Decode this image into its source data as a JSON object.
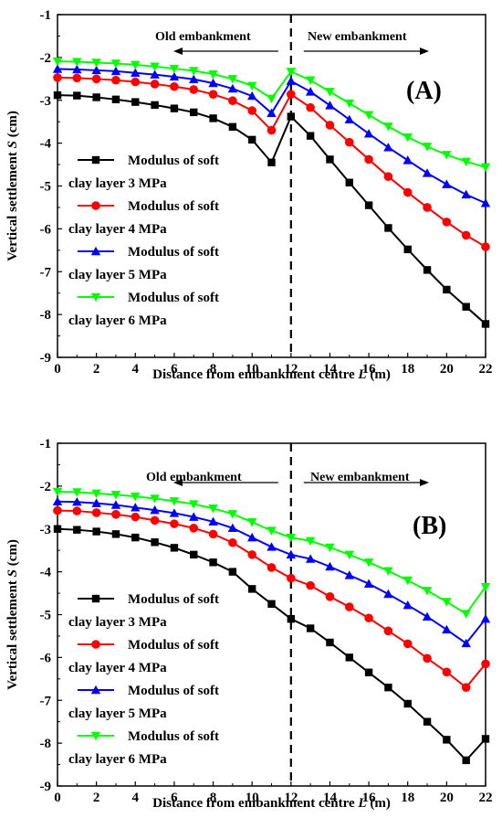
{
  "chart_data": [
    {
      "type": "line",
      "panel_label": "(A)",
      "xlabel_prefix": "Distance from embankment centre ",
      "xlabel_var": "L",
      "xlabel_unit": " (m)",
      "ylabel_prefix": "Vertical settlement  ",
      "ylabel_var": "S",
      "ylabel_unit": " (cm)",
      "xlim": [
        0,
        22
      ],
      "ylim": [
        -9,
        -1
      ],
      "xticks": [
        "0",
        "2",
        "4",
        "6",
        "8",
        "10",
        "12",
        "14",
        "16",
        "18",
        "20",
        "22"
      ],
      "yticks": [
        "-1",
        "-2",
        "-3",
        "-4",
        "-5",
        "-6",
        "-7",
        "-8",
        "-9"
      ],
      "divider_x": 12,
      "annotations": {
        "left": "Old embankment",
        "right": "New embankment"
      },
      "legend_position": "left",
      "x": [
        0,
        1,
        2,
        3,
        4,
        5,
        6,
        7,
        8,
        9,
        10,
        11,
        12,
        13,
        14,
        15,
        16,
        17,
        18,
        19,
        20,
        21,
        22
      ],
      "series": [
        {
          "name_line1": "Modulus of soft",
          "name_line2": "clay layer 3 MPa",
          "color": "#000000",
          "marker": "square",
          "values": [
            -2.88,
            -2.89,
            -2.93,
            -2.98,
            -3.04,
            -3.11,
            -3.19,
            -3.28,
            -3.42,
            -3.62,
            -3.92,
            -4.45,
            -3.38,
            -3.83,
            -4.38,
            -4.92,
            -5.45,
            -5.98,
            -6.48,
            -6.96,
            -7.42,
            -7.82,
            -8.22
          ]
        },
        {
          "name_line1": "Modulus of soft",
          "name_line2": "clay layer 4 MPa",
          "color": "#ff0000",
          "marker": "circle",
          "values": [
            -2.47,
            -2.48,
            -2.5,
            -2.53,
            -2.57,
            -2.62,
            -2.68,
            -2.75,
            -2.86,
            -3.01,
            -3.24,
            -3.7,
            -2.86,
            -3.17,
            -3.58,
            -3.98,
            -4.38,
            -4.78,
            -5.15,
            -5.5,
            -5.84,
            -6.15,
            -6.42
          ]
        },
        {
          "name_line1": "Modulus of soft",
          "name_line2": "clay layer 5 MPa",
          "color": "#0000ff",
          "marker": "triangle-up",
          "values": [
            -2.27,
            -2.28,
            -2.3,
            -2.32,
            -2.36,
            -2.4,
            -2.45,
            -2.51,
            -2.6,
            -2.73,
            -2.9,
            -3.3,
            -2.55,
            -2.8,
            -3.12,
            -3.45,
            -3.78,
            -4.1,
            -4.4,
            -4.7,
            -4.96,
            -5.2,
            -5.4
          ]
        },
        {
          "name_line1": "Modulus of soft",
          "name_line2": "clay layer 6 MPa",
          "color": "#00ff00",
          "marker": "triangle-down",
          "values": [
            -2.09,
            -2.1,
            -2.12,
            -2.14,
            -2.17,
            -2.21,
            -2.26,
            -2.31,
            -2.39,
            -2.5,
            -2.66,
            -2.96,
            -2.33,
            -2.53,
            -2.8,
            -3.07,
            -3.34,
            -3.61,
            -3.86,
            -4.08,
            -4.27,
            -4.43,
            -4.56
          ]
        }
      ]
    },
    {
      "type": "line",
      "panel_label": "(B)",
      "xlabel_prefix": "Distance from embankment centre ",
      "xlabel_var": "L",
      "xlabel_unit": " (m)",
      "ylabel_prefix": "Vertical settlement  ",
      "ylabel_var": "S",
      "ylabel_unit": " (cm)",
      "xlim": [
        0,
        22
      ],
      "ylim": [
        -9,
        -1
      ],
      "xticks": [
        "0",
        "2",
        "4",
        "6",
        "8",
        "10",
        "12",
        "14",
        "16",
        "18",
        "20",
        "22"
      ],
      "yticks": [
        "-1",
        "-2",
        "-3",
        "-4",
        "-5",
        "-6",
        "-7",
        "-8",
        "-9"
      ],
      "divider_x": 12,
      "annotations": {
        "left": "Old embankment",
        "right": "New embankment"
      },
      "legend_position": "bottom-left",
      "x": [
        0,
        1,
        2,
        3,
        4,
        5,
        6,
        7,
        8,
        9,
        10,
        11,
        12,
        13,
        14,
        15,
        16,
        17,
        18,
        19,
        20,
        21,
        22
      ],
      "series": [
        {
          "name_line1": "Modulus of soft",
          "name_line2": "clay layer 3 MPa",
          "color": "#000000",
          "marker": "square",
          "values": [
            -3.0,
            -3.02,
            -3.06,
            -3.12,
            -3.2,
            -3.31,
            -3.44,
            -3.6,
            -3.78,
            -4.0,
            -4.4,
            -4.75,
            -5.1,
            -5.32,
            -5.65,
            -6.0,
            -6.35,
            -6.7,
            -7.08,
            -7.5,
            -7.92,
            -8.4,
            -7.9
          ]
        },
        {
          "name_line1": "Modulus of soft",
          "name_line2": "clay layer 4 MPa",
          "color": "#ff0000",
          "marker": "circle",
          "values": [
            -2.57,
            -2.58,
            -2.62,
            -2.66,
            -2.72,
            -2.8,
            -2.88,
            -2.98,
            -3.12,
            -3.32,
            -3.6,
            -3.9,
            -4.15,
            -4.32,
            -4.58,
            -4.82,
            -5.08,
            -5.38,
            -5.68,
            -6.02,
            -6.34,
            -6.7,
            -6.15
          ]
        },
        {
          "name_line1": "Modulus of soft",
          "name_line2": "clay layer 5 MPa",
          "color": "#0000ff",
          "marker": "triangle-up",
          "values": [
            -2.36,
            -2.37,
            -2.4,
            -2.44,
            -2.5,
            -2.56,
            -2.63,
            -2.72,
            -2.83,
            -2.98,
            -3.2,
            -3.42,
            -3.6,
            -3.7,
            -3.88,
            -4.08,
            -4.28,
            -4.52,
            -4.78,
            -5.05,
            -5.35,
            -5.67,
            -5.1
          ]
        },
        {
          "name_line1": "Modulus of soft",
          "name_line2": "clay layer 6 MPa",
          "color": "#00ff00",
          "marker": "triangle-down",
          "values": [
            -2.13,
            -2.14,
            -2.17,
            -2.2,
            -2.24,
            -2.29,
            -2.35,
            -2.42,
            -2.52,
            -2.65,
            -2.84,
            -3.04,
            -3.2,
            -3.28,
            -3.43,
            -3.6,
            -3.78,
            -3.98,
            -4.2,
            -4.44,
            -4.7,
            -4.98,
            -4.35
          ]
        }
      ]
    }
  ]
}
